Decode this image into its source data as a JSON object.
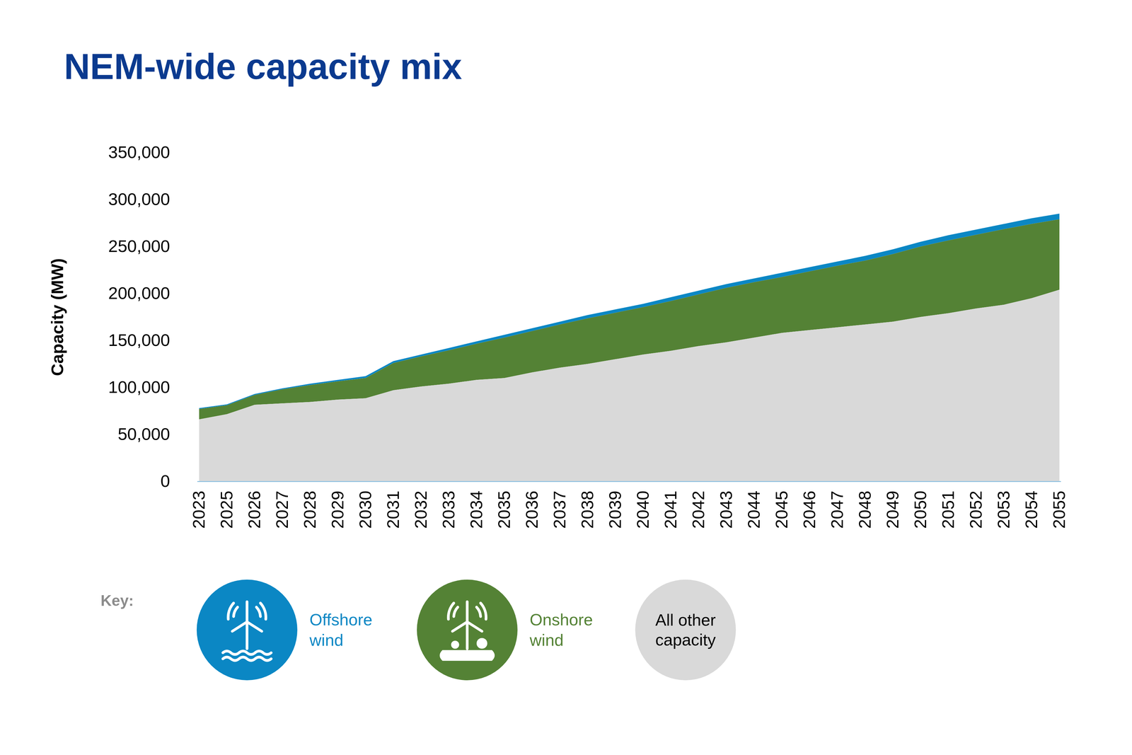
{
  "chart_data": {
    "type": "area",
    "title": "NEM-wide capacity mix",
    "y_label": "Capacity (MW)",
    "stacked": true,
    "legend": "bottom",
    "legend_title": "Key:",
    "categories": [
      "2023",
      "2025",
      "2026",
      "2027",
      "2028",
      "2029",
      "2030",
      "2031",
      "2032",
      "2033",
      "2034",
      "2035",
      "2036",
      "2037",
      "2038",
      "2039",
      "2040",
      "2041",
      "2042",
      "2043",
      "2044",
      "2045",
      "2046",
      "2047",
      "2048",
      "2049",
      "2050",
      "2051",
      "2052",
      "2053",
      "2054",
      "2055"
    ],
    "ylim": [
      0,
      350000
    ],
    "yticks": [
      0,
      {
        "value": 50000,
        "label": "50,000"
      },
      {
        "value": 100000,
        "label": "100,000"
      },
      {
        "value": 150000,
        "label": "150,000"
      },
      {
        "value": 200000,
        "label": "200,000"
      },
      {
        "value": 250000,
        "label": "250,000"
      },
      {
        "value": 300000,
        "label": "300,000"
      },
      {
        "value": 350000,
        "label": "350,000"
      }
    ],
    "series": [
      {
        "name": "Offshore wind",
        "color": "#0b87c4",
        "values": [
          1000,
          1000,
          1000,
          1000,
          1500,
          1500,
          2000,
          2000,
          2000,
          2500,
          2500,
          3000,
          3000,
          3000,
          3500,
          3500,
          3500,
          4000,
          4000,
          4000,
          4000,
          4500,
          4500,
          4500,
          5000,
          5000,
          5000,
          5500,
          5500,
          5500,
          6000,
          6000
        ]
      },
      {
        "name": "Onshore wind",
        "color": "#548235",
        "values": [
          11000,
          9500,
          10500,
          15000,
          18000,
          19500,
          21500,
          29000,
          32000,
          35500,
          38500,
          43000,
          44000,
          46000,
          48500,
          49500,
          50500,
          53000,
          55000,
          58000,
          59000,
          59500,
          62500,
          65500,
          68000,
          72000,
          75000,
          77500,
          78500,
          80500,
          79000,
          75000
        ]
      },
      {
        "name": "All other capacity",
        "color": "#d9d9d9",
        "values": [
          66000,
          71500,
          81500,
          83000,
          84500,
          87000,
          88500,
          97000,
          101000,
          104000,
          108000,
          110000,
          116000,
          121000,
          125000,
          130000,
          135000,
          139000,
          144000,
          148000,
          153000,
          158000,
          161000,
          164000,
          167000,
          170000,
          175000,
          179000,
          184000,
          188000,
          195000,
          204000
        ]
      }
    ]
  }
}
